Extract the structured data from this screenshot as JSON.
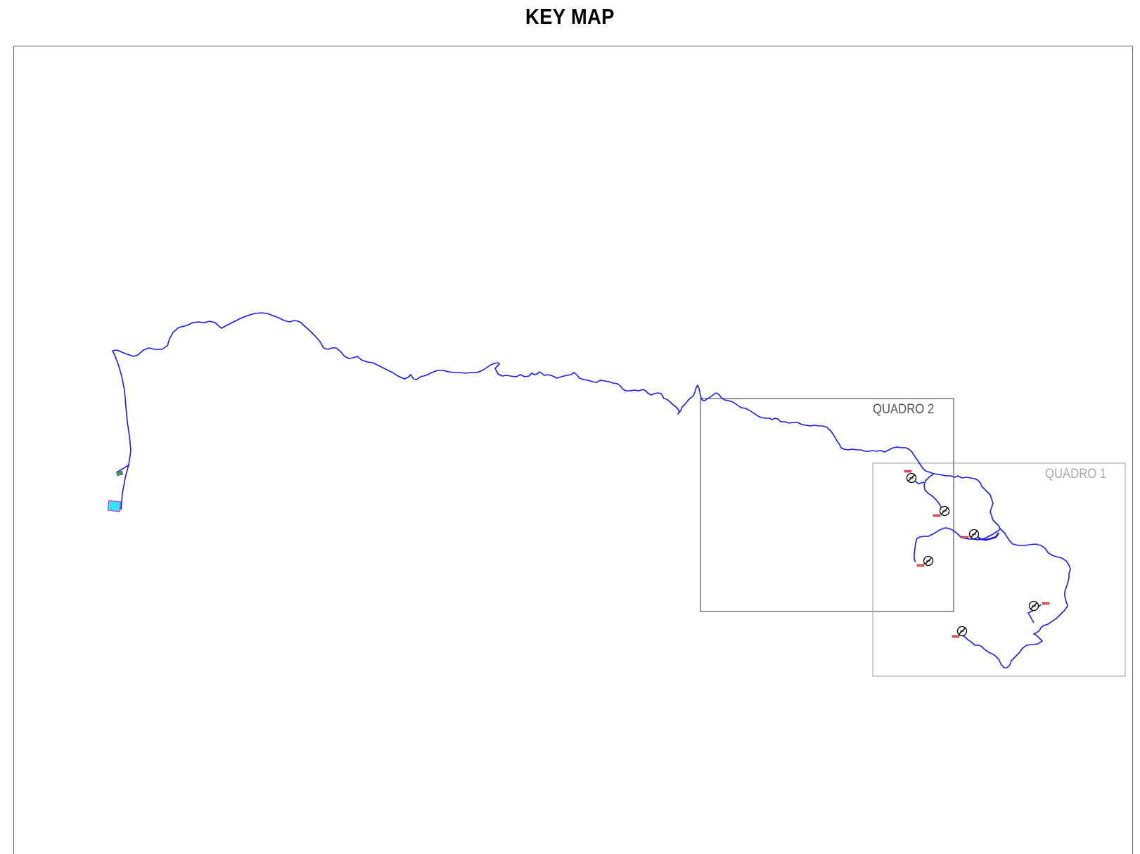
{
  "title": "KEY MAP",
  "panels": [
    {
      "label": "QUADRO 2",
      "color": "#555555"
    },
    {
      "label": "QUADRO 1",
      "color": "#aaaaaa"
    }
  ],
  "colors": {
    "route": "#1a1aff",
    "tank": "#33e6ff",
    "tank_border": "#cc33cc",
    "small_marker": "#33aa33",
    "pump_label": "#e05060",
    "frame": "#666666"
  },
  "icons": [
    "pump-station-icon",
    "tank-icon",
    "valve-marker-icon"
  ]
}
